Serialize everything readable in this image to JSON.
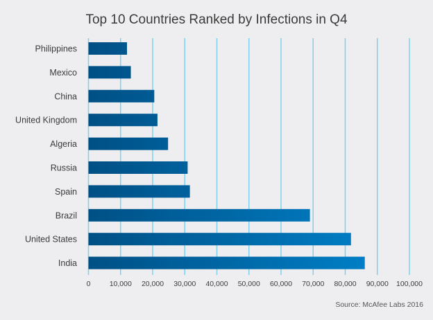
{
  "chart_data": {
    "type": "bar",
    "orientation": "horizontal",
    "title": "Top 10 Countries Ranked by Infections in Q4",
    "source": "Source: McAfee Labs 2016",
    "categories": [
      "Philippines",
      "Mexico",
      "China",
      "United Kingdom",
      "Algeria",
      "Russia",
      "Spain",
      "Brazil",
      "United States",
      "India"
    ],
    "values": [
      12000,
      13200,
      20500,
      21500,
      24800,
      30900,
      31600,
      69000,
      81800,
      86100
    ],
    "xlim": [
      0,
      100000
    ],
    "xticks": [
      0,
      10000,
      20000,
      30000,
      40000,
      50000,
      60000,
      70000,
      80000,
      90000,
      100000
    ],
    "xtick_labels": [
      "0",
      "10,000",
      "20,000",
      "30,000",
      "40,000",
      "50,000",
      "60,000",
      "70,000",
      "80,000",
      "90,000",
      "100,000"
    ],
    "grid": "vertical",
    "colors": {
      "bar_start": "#005085",
      "bar_end": "#0080c8",
      "grid": "#7fd0ee",
      "background": "#eeeef0"
    }
  }
}
